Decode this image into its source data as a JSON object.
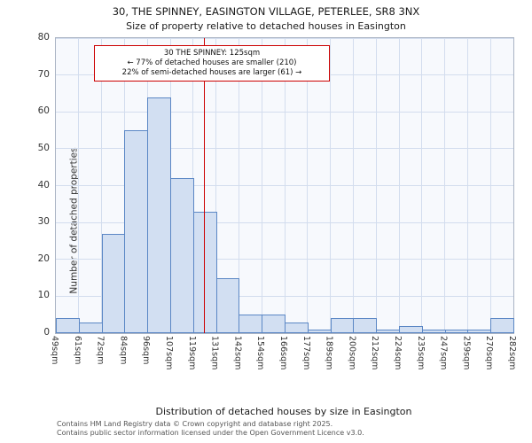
{
  "title": "30, THE SPINNEY, EASINGTON VILLAGE, PETERLEE, SR8 3NX",
  "subtitle": "Size of property relative to detached houses in Easington",
  "annotation": {
    "line1": "30 THE SPINNEY: 125sqm",
    "line2": "← 77% of detached houses are smaller (210)",
    "line3": "22% of semi-detached houses are larger (61) →"
  },
  "footer": {
    "line1": "Contains HM Land Registry data © Crown copyright and database right 2025.",
    "line2": "Contains public sector information licensed under the Open Government Licence v3.0."
  },
  "chart_data": {
    "type": "bar",
    "title": "30, THE SPINNEY, EASINGTON VILLAGE, PETERLEE, SR8 3NX",
    "subtitle": "Size of property relative to detached houses in Easington",
    "xlabel": "Distribution of detached houses by size in Easington",
    "ylabel": "Number of detached properties",
    "bin_edges_sqm": [
      49,
      61,
      72,
      84,
      96,
      107,
      119,
      131,
      142,
      154,
      166,
      177,
      189,
      200,
      212,
      224,
      235,
      247,
      259,
      270,
      282
    ],
    "x_tick_labels": [
      "49sqm",
      "61sqm",
      "72sqm",
      "84sqm",
      "96sqm",
      "107sqm",
      "119sqm",
      "131sqm",
      "142sqm",
      "154sqm",
      "166sqm",
      "177sqm",
      "189sqm",
      "200sqm",
      "212sqm",
      "224sqm",
      "235sqm",
      "247sqm",
      "259sqm",
      "270sqm",
      "282sqm"
    ],
    "values": [
      4,
      3,
      27,
      55,
      64,
      42,
      33,
      15,
      5,
      5,
      3,
      1,
      4,
      4,
      1,
      2,
      1,
      1,
      1,
      4
    ],
    "ylim": [
      0,
      80
    ],
    "y_ticks": [
      0,
      10,
      20,
      30,
      40,
      50,
      60,
      70,
      80
    ],
    "grid": true,
    "legend": "none",
    "marker_value_sqm": 125,
    "marker_color": "#cc0000",
    "bar_fill": "#d2dff2",
    "bar_border": "#5b87c5",
    "grid_color": "#d3ddee",
    "plot_bg": "#f7f9fd"
  }
}
